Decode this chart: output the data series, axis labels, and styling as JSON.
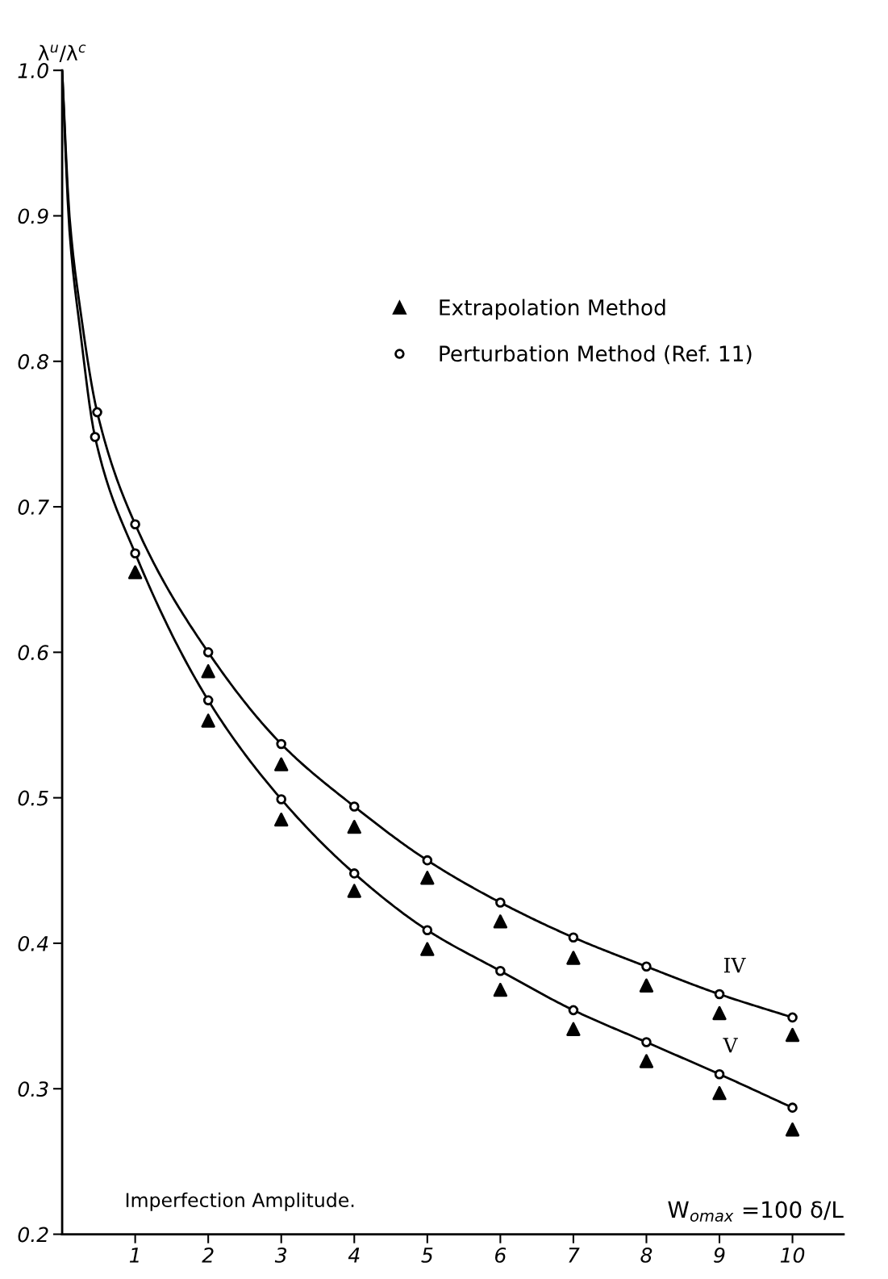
{
  "chart_data": {
    "type": "line",
    "xlabel": "W$_{omax}$ =100 δ/L",
    "ylabel": "λ$^{u}$/λ$^{c}$",
    "annotations": [
      "Imperfection Amplitude."
    ],
    "xlim": [
      0,
      10.7
    ],
    "ylim": [
      0.2,
      1.0
    ],
    "xticks": [
      1,
      2,
      3,
      4,
      5,
      6,
      7,
      8,
      9,
      10
    ],
    "yticks": [
      0.2,
      0.3,
      0.4,
      0.5,
      0.6,
      0.7,
      0.8,
      0.9,
      {
        "value": 1.0,
        "label": "1.0"
      }
    ],
    "grid": false,
    "legend": "top right",
    "line_style": "solid",
    "series": [
      {
        "name": "IV",
        "color": "#000000",
        "marker": "none",
        "x": [
          0,
          0.1,
          0.25,
          0.48,
          1,
          2,
          3,
          4,
          5,
          6,
          7,
          8,
          9,
          10
        ],
        "values": [
          1.0,
          0.9,
          0.835,
          0.765,
          0.688,
          0.6,
          0.537,
          0.494,
          0.457,
          0.428,
          0.404,
          0.384,
          0.365,
          0.349
        ]
      },
      {
        "name": "V",
        "color": "#000000",
        "marker": "none",
        "x": [
          0,
          0.1,
          0.25,
          0.45,
          1,
          2,
          3,
          4,
          5,
          6,
          7,
          8,
          9,
          10
        ],
        "values": [
          1.0,
          0.89,
          0.82,
          0.748,
          0.668,
          0.567,
          0.499,
          0.448,
          0.409,
          0.381,
          0.354,
          0.332,
          0.31,
          0.287
        ]
      },
      {
        "name": "Extrapolation Method",
        "type": "scatter",
        "color": "#000000",
        "marker": "triangle",
        "x": [
          1,
          2,
          2,
          3,
          3,
          4,
          4,
          5,
          5,
          6,
          6,
          7,
          7,
          8,
          8,
          9,
          9,
          10,
          10
        ],
        "values": [
          0.655,
          0.587,
          0.553,
          0.523,
          0.485,
          0.48,
          0.436,
          0.445,
          0.396,
          0.415,
          0.368,
          0.39,
          0.341,
          0.371,
          0.319,
          0.352,
          0.297,
          0.337,
          0.272
        ]
      },
      {
        "name": "Perturbation Method (Ref. 11)",
        "type": "scatter",
        "color": "#000000",
        "marker": "circle",
        "x": [
          0.48,
          1,
          2,
          3,
          4,
          5,
          6,
          7,
          8,
          9,
          10,
          0.45,
          1,
          2,
          3,
          4,
          5,
          6,
          7,
          8,
          9,
          10
        ],
        "values": [
          0.765,
          0.688,
          0.6,
          0.537,
          0.494,
          0.457,
          0.428,
          0.404,
          0.384,
          0.365,
          0.349,
          0.748,
          0.668,
          0.567,
          0.499,
          0.448,
          0.409,
          0.381,
          0.354,
          0.332,
          0.31,
          0.287
        ]
      }
    ]
  }
}
